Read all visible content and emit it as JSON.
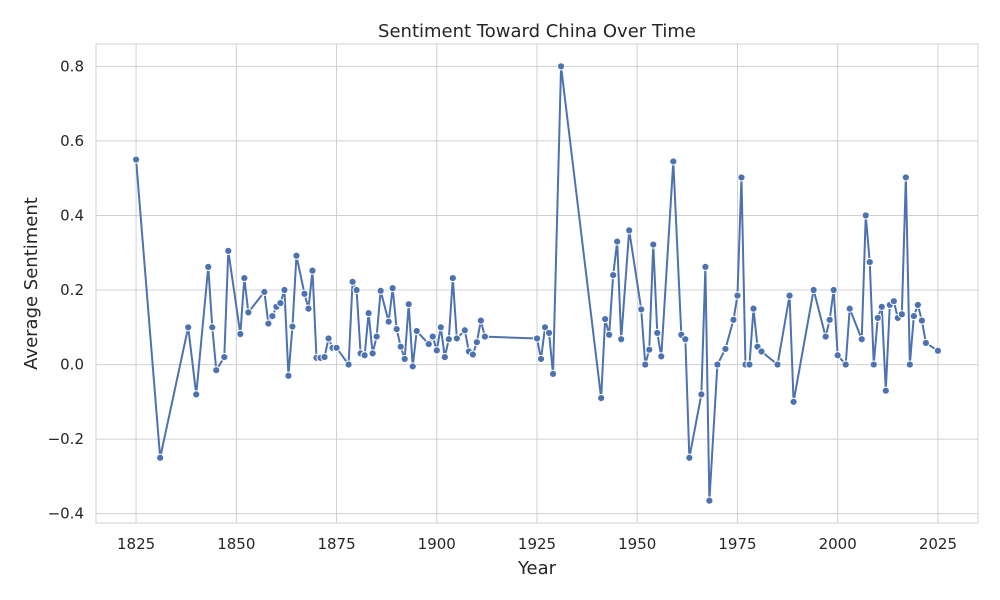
{
  "chart_data": {
    "type": "line",
    "title": "Sentiment Toward China Over Time",
    "xlabel": "Year",
    "ylabel": "Average Sentiment",
    "xlim": [
      1815,
      2035
    ],
    "ylim": [
      -0.425,
      0.86
    ],
    "xticks": [
      1825,
      1850,
      1875,
      1900,
      1925,
      1950,
      1975,
      2000,
      2025
    ],
    "yticks": [
      -0.4,
      -0.2,
      0.0,
      0.2,
      0.4,
      0.6,
      0.8
    ],
    "ytick_labels": [
      "−0.4",
      "−0.2",
      "0.0",
      "0.2",
      "0.4",
      "0.6",
      "0.8"
    ],
    "grid": true,
    "series": [
      {
        "color": "#4c72b0",
        "points": [
          [
            1825,
            0.55
          ],
          [
            1831,
            -0.25
          ],
          [
            1838,
            0.1
          ],
          [
            1840,
            -0.08
          ],
          [
            1843,
            0.262
          ],
          [
            1844,
            0.1
          ],
          [
            1845,
            -0.015
          ],
          [
            1847,
            0.02
          ],
          [
            1848,
            0.305
          ],
          [
            1851,
            0.082
          ],
          [
            1852,
            0.232
          ],
          [
            1853,
            0.14
          ],
          [
            1857,
            0.195
          ],
          [
            1858,
            0.11
          ],
          [
            1859,
            0.13
          ],
          [
            1860,
            0.155
          ],
          [
            1861,
            0.165
          ],
          [
            1862,
            0.2
          ],
          [
            1863,
            -0.03
          ],
          [
            1864,
            0.102
          ],
          [
            1865,
            0.292
          ],
          [
            1867,
            0.19
          ],
          [
            1868,
            0.15
          ],
          [
            1869,
            0.252
          ],
          [
            1870,
            0.018
          ],
          [
            1871,
            0.018
          ],
          [
            1872,
            0.02
          ],
          [
            1873,
            0.07
          ],
          [
            1874,
            0.045
          ],
          [
            1875,
            0.045
          ],
          [
            1878,
            0.0
          ],
          [
            1879,
            0.222
          ],
          [
            1880,
            0.2
          ],
          [
            1881,
            0.03
          ],
          [
            1882,
            0.025
          ],
          [
            1883,
            0.138
          ],
          [
            1884,
            0.03
          ],
          [
            1885,
            0.075
          ],
          [
            1886,
            0.198
          ],
          [
            1888,
            0.115
          ],
          [
            1889,
            0.205
          ],
          [
            1890,
            0.095
          ],
          [
            1891,
            0.048
          ],
          [
            1892,
            0.015
          ],
          [
            1893,
            0.162
          ],
          [
            1894,
            -0.005
          ],
          [
            1895,
            0.09
          ],
          [
            1898,
            0.055
          ],
          [
            1899,
            0.075
          ],
          [
            1900,
            0.038
          ],
          [
            1901,
            0.1
          ],
          [
            1902,
            0.02
          ],
          [
            1903,
            0.068
          ],
          [
            1904,
            0.232
          ],
          [
            1905,
            0.07
          ],
          [
            1907,
            0.092
          ],
          [
            1908,
            0.035
          ],
          [
            1909,
            0.027
          ],
          [
            1910,
            0.06
          ],
          [
            1911,
            0.118
          ],
          [
            1912,
            0.075
          ],
          [
            1925,
            0.07
          ],
          [
            1926,
            0.015
          ],
          [
            1927,
            0.1
          ],
          [
            1928,
            0.085
          ],
          [
            1929,
            -0.025
          ],
          [
            1931,
            0.8
          ],
          [
            1941,
            -0.09
          ],
          [
            1942,
            0.122
          ],
          [
            1943,
            0.08
          ],
          [
            1944,
            0.24
          ],
          [
            1945,
            0.33
          ],
          [
            1946,
            0.068
          ],
          [
            1948,
            0.36
          ],
          [
            1951,
            0.148
          ],
          [
            1952,
            0.0
          ],
          [
            1953,
            0.04
          ],
          [
            1954,
            0.322
          ],
          [
            1955,
            0.085
          ],
          [
            1956,
            0.022
          ],
          [
            1959,
            0.545
          ],
          [
            1961,
            0.08
          ],
          [
            1962,
            0.068
          ],
          [
            1963,
            -0.25
          ],
          [
            1966,
            -0.08
          ],
          [
            1967,
            0.262
          ],
          [
            1968,
            -0.365
          ],
          [
            1970,
            0.0
          ],
          [
            1972,
            0.042
          ],
          [
            1974,
            0.12
          ],
          [
            1975,
            0.185
          ],
          [
            1976,
            0.502
          ],
          [
            1977,
            0.0
          ],
          [
            1978,
            0.0
          ],
          [
            1979,
            0.15
          ],
          [
            1980,
            0.048
          ],
          [
            1981,
            0.035
          ],
          [
            1985,
            0.0
          ],
          [
            1988,
            0.185
          ],
          [
            1989,
            -0.1
          ],
          [
            1994,
            0.2
          ],
          [
            1997,
            0.075
          ],
          [
            1998,
            0.12
          ],
          [
            1999,
            0.2
          ],
          [
            2000,
            0.025
          ],
          [
            2002,
            0.0
          ],
          [
            2003,
            0.15
          ],
          [
            2006,
            0.068
          ],
          [
            2007,
            0.4
          ],
          [
            2008,
            0.275
          ],
          [
            2009,
            0.0
          ],
          [
            2010,
            0.125
          ],
          [
            2011,
            0.155
          ],
          [
            2012,
            -0.07
          ],
          [
            2013,
            0.16
          ],
          [
            2014,
            0.17
          ],
          [
            2015,
            0.125
          ],
          [
            2016,
            0.135
          ],
          [
            2017,
            0.502
          ],
          [
            2018,
            0.0
          ],
          [
            2019,
            0.13
          ],
          [
            2020,
            0.16
          ],
          [
            2021,
            0.118
          ],
          [
            2022,
            0.058
          ],
          [
            2025,
            0.037
          ]
        ]
      }
    ]
  }
}
